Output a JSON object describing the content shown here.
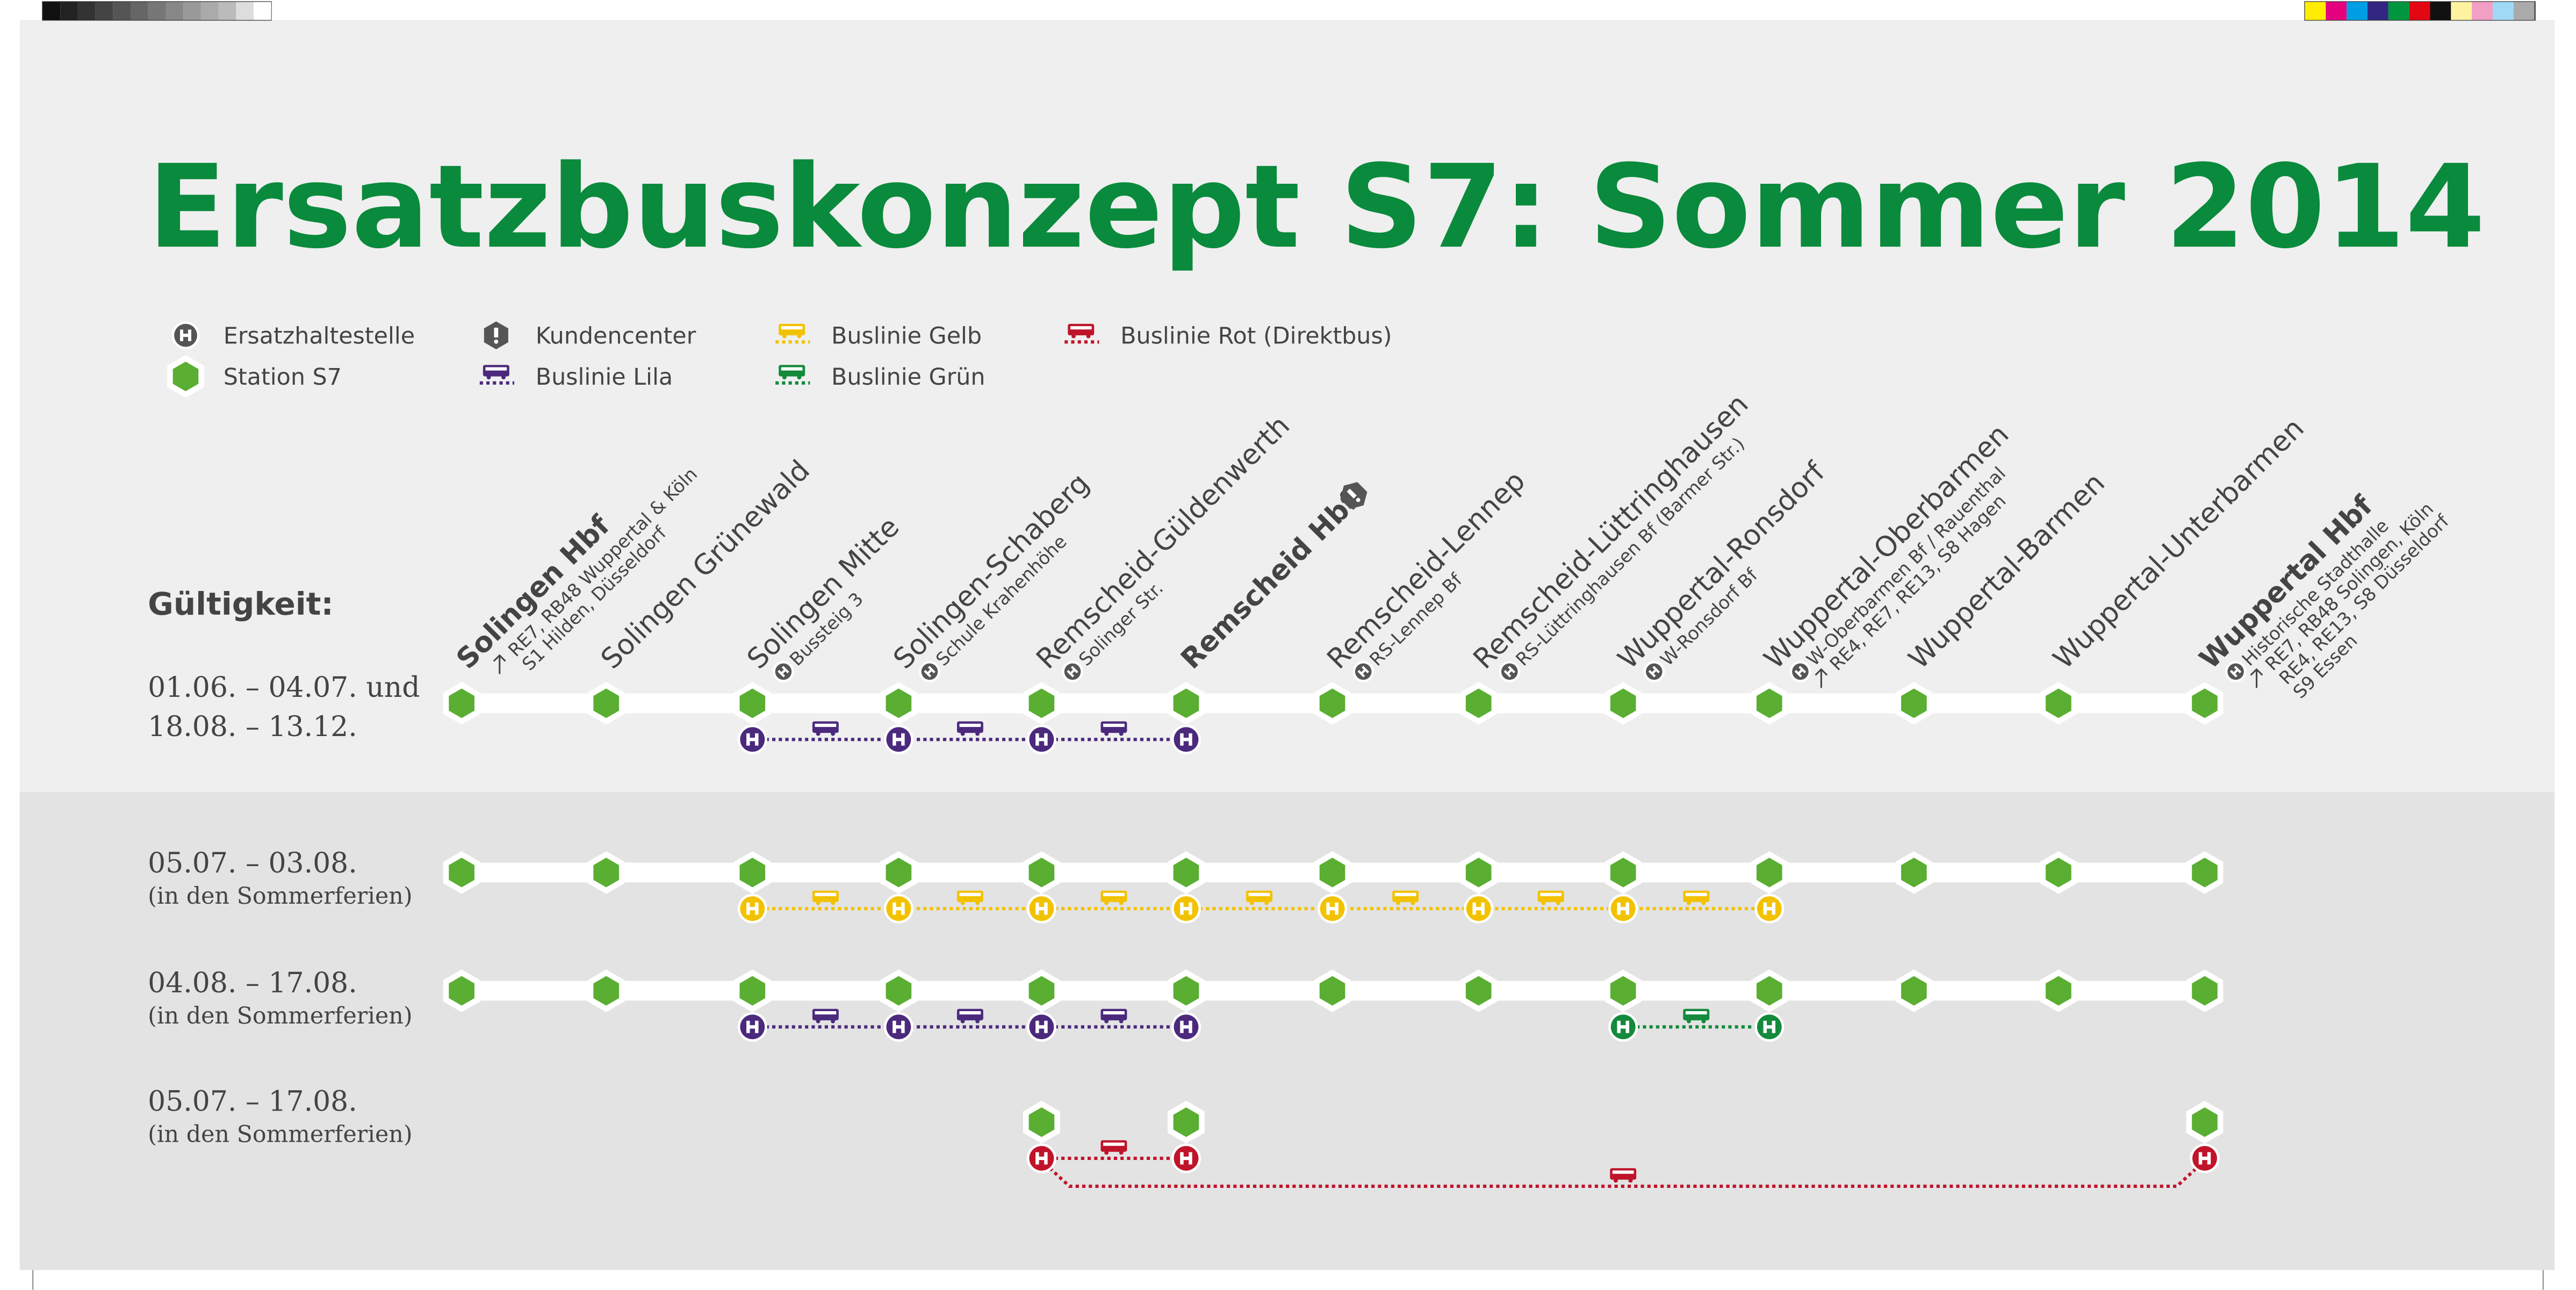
{
  "title": "Ersatzbuskonzept S7: Sommer 2014",
  "legend": [
    "Ersatzhaltestelle",
    "Station S7",
    "Kundencenter",
    "Buslinie Lila",
    "Buslinie Gelb",
    "Buslinie Grün",
    "Buslinie Rot (Direktbus)"
  ],
  "validity_label": "Gültigkeit:",
  "stations": [
    {
      "name": "Solingen Hbf",
      "bold": true,
      "connections": [
        "RE7, RB48 Wuppertal & Köln",
        "S1 Hilden, Düsseldorf"
      ]
    },
    {
      "name": "Solingen Grünewald"
    },
    {
      "name": "Solingen Mitte",
      "stop": "Bussteig 3"
    },
    {
      "name": "Solingen-Schaberg",
      "stop": "Schule Krahenhöhe"
    },
    {
      "name": "Remscheid-Güldenwerth",
      "stop": "Solinger Str."
    },
    {
      "name": "Remscheid Hbf",
      "bold": true,
      "kundencenter": true
    },
    {
      "name": "Remscheid-Lennep",
      "stop": "RS-Lennep Bf"
    },
    {
      "name": "Remscheid-Lüttringhausen",
      "stop": "RS-Lüttringhausen Bf (Barmer Str.)"
    },
    {
      "name": "Wuppertal-Ronsdorf",
      "stop": "W-Ronsdorf Bf"
    },
    {
      "name": "Wuppertal-Oberbarmen",
      "stop": "W-Oberbarmen Bf / Rauenthal",
      "connections": [
        "RE4, RE7, RE13, S8 Hagen"
      ]
    },
    {
      "name": "Wuppertal-Barmen"
    },
    {
      "name": "Wuppertal-Unterbarmen"
    },
    {
      "name": "Wuppertal Hbf",
      "bold": true,
      "stop": "Historische Stadthalle",
      "connections": [
        "RE7, RB48 Solingen, Köln",
        "RE4, RE13, S8 Düsseldorf",
        "S9 Essen"
      ]
    }
  ],
  "rows": [
    {
      "dates": [
        "01.06. – 04.07. und",
        "18.08. – 13.12."
      ]
    },
    {
      "dates": [
        "05.07. – 03.08."
      ],
      "note": "(in den Sommerferien)"
    },
    {
      "dates": [
        "04.08. – 17.08."
      ],
      "note": "(in den Sommerferien)"
    },
    {
      "dates": [
        "05.07. – 17.08."
      ],
      "note": "(in den Sommerferien)"
    }
  ]
}
